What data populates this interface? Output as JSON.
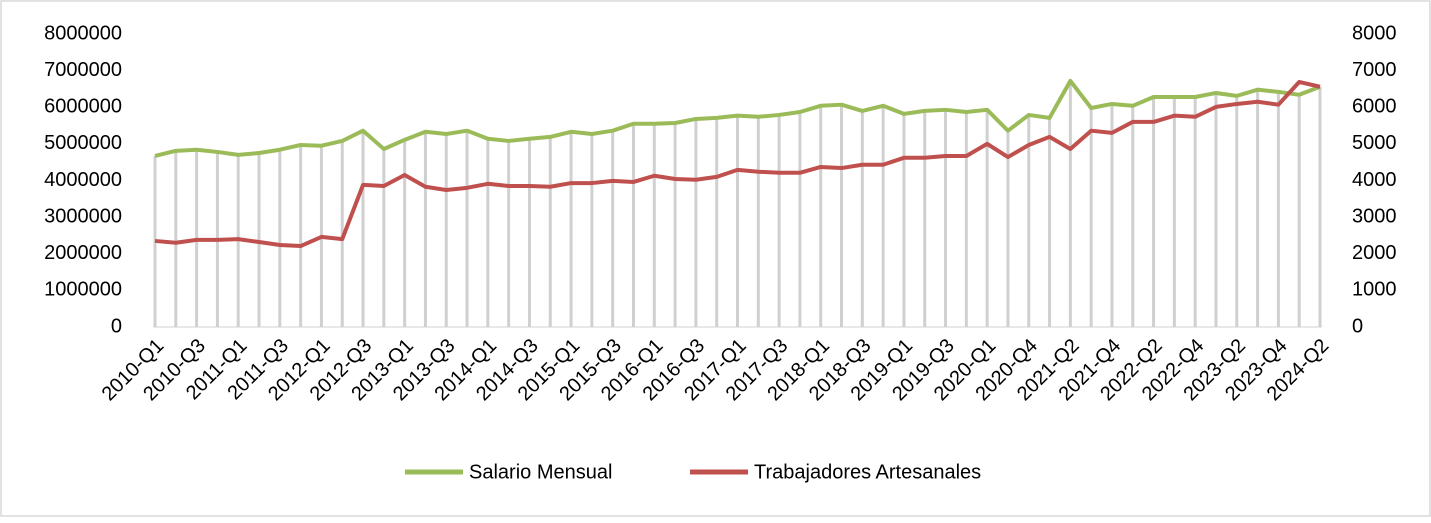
{
  "chart_data": {
    "type": "line",
    "categories": [
      "2010-Q1",
      null,
      "2010-Q3",
      null,
      "2011-Q1",
      null,
      "2011-Q3",
      null,
      "2012-Q1",
      null,
      "2012-Q3",
      null,
      "2013-Q1",
      null,
      "2013-Q3",
      null,
      "2014-Q1",
      null,
      "2014-Q3",
      null,
      "2015-Q1",
      null,
      "2015-Q3",
      null,
      "2016-Q1",
      null,
      "2016-Q3",
      null,
      "2017-Q1",
      null,
      "2017-Q3",
      null,
      "2018-Q1",
      null,
      "2018-Q3",
      null,
      "2019-Q1",
      null,
      "2019-Q3",
      null,
      "2020-Q1",
      null,
      "2020-Q4",
      null,
      "2021-Q2",
      null,
      "2021-Q4",
      null,
      "2022-Q2",
      null,
      "2022-Q4",
      null,
      "2023-Q2",
      null,
      "2023-Q4",
      null,
      "2024-Q2"
    ],
    "series": [
      {
        "name": "Salario Mensual",
        "color": "#9bbb59",
        "values": [
          4670000,
          4810000,
          4840000,
          4780000,
          4700000,
          4750000,
          4840000,
          4970000,
          4950000,
          5080000,
          5360000,
          4860000,
          5110000,
          5330000,
          5270000,
          5360000,
          5140000,
          5080000,
          5140000,
          5190000,
          5330000,
          5270000,
          5360000,
          5550000,
          5550000,
          5570000,
          5680000,
          5710000,
          5770000,
          5740000,
          5790000,
          5870000,
          6040000,
          6070000,
          5900000,
          6040000,
          5820000,
          5900000,
          5930000,
          5870000,
          5930000,
          5360000,
          5790000,
          5710000,
          6720000,
          5980000,
          6090000,
          6040000,
          6280000,
          6280000,
          6280000,
          6390000,
          6310000,
          6480000,
          6420000,
          6340000,
          6560000
        ]
      },
      {
        "name": "Trabajadores Artesanales",
        "color": "#c0504d",
        "axis": "y2",
        "values": [
          2350,
          2300,
          2380,
          2380,
          2400,
          2320,
          2240,
          2210,
          2460,
          2400,
          3880,
          3850,
          4150,
          3830,
          3740,
          3800,
          3910,
          3850,
          3850,
          3830,
          3930,
          3930,
          3990,
          3960,
          4130,
          4040,
          4020,
          4100,
          4290,
          4240,
          4210,
          4210,
          4370,
          4340,
          4430,
          4430,
          4620,
          4620,
          4670,
          4670,
          5000,
          4640,
          4970,
          5190,
          4860,
          5360,
          5300,
          5600,
          5600,
          5770,
          5740,
          6010,
          6090,
          6150,
          6070,
          6690,
          6560
        ]
      }
    ],
    "ylim": [
      0,
      8000000
    ],
    "yticks": [
      0,
      1000000,
      2000000,
      3000000,
      4000000,
      5000000,
      6000000,
      7000000,
      8000000
    ],
    "y2lim": [
      0,
      8000
    ],
    "y2ticks": [
      0,
      1000,
      2000,
      3000,
      4000,
      5000,
      6000,
      7000,
      8000
    ],
    "drop_lines": true,
    "legend": "bottom"
  }
}
